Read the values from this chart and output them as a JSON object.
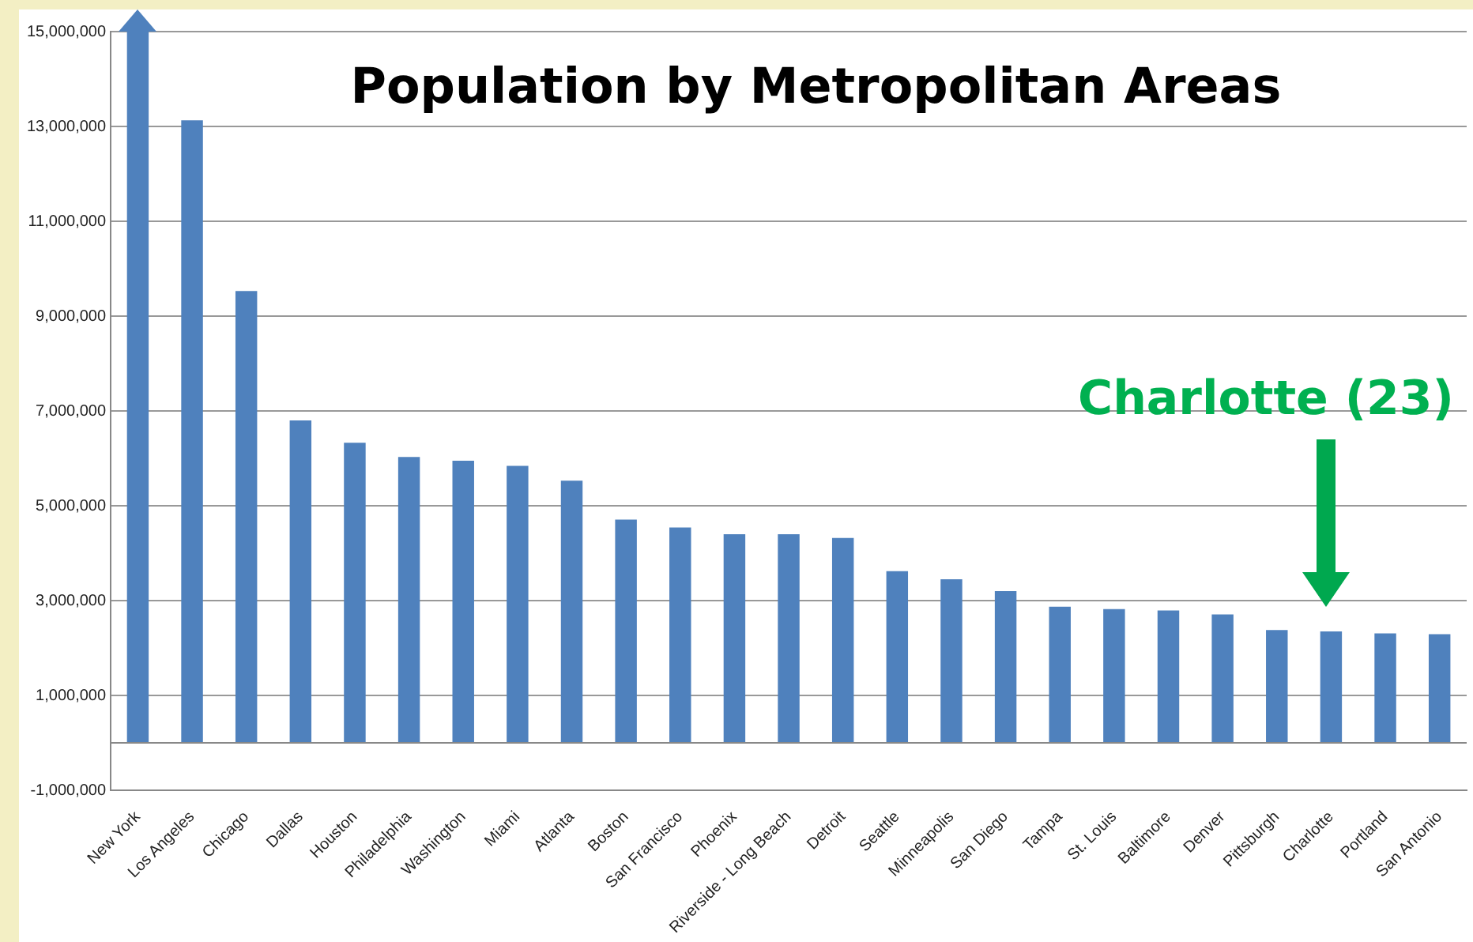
{
  "chart_data": {
    "type": "bar",
    "title": "Population by Metropolitan Areas",
    "categories": [
      "New York",
      "Los Angeles",
      "Chicago",
      "Dallas",
      "Houston",
      "Philadelphia",
      "Washington",
      "Miami",
      "Atlanta",
      "Boston",
      "San Francisco",
      "Phoenix",
      "Riverside - Long Beach",
      "Detroit",
      "Seattle",
      "Minneapolis",
      "San Diego",
      "Tampa",
      "St. Louis",
      "Baltimore",
      "Denver",
      "Pittsburgh",
      "Charlotte",
      "Portland",
      "San Antonio"
    ],
    "values": [
      15000000,
      13130000,
      9530000,
      6800000,
      6330000,
      6030000,
      5950000,
      5840000,
      5530000,
      4710000,
      4540000,
      4400000,
      4400000,
      4320000,
      3620000,
      3450000,
      3200000,
      2870000,
      2820000,
      2790000,
      2710000,
      2380000,
      2350000,
      2310000,
      2290000
    ],
    "color": "#4f81bd",
    "ylim": [
      -1000000,
      15000000
    ],
    "yticks": [
      {
        "value": -1000000,
        "label": "-1,000,000"
      },
      {
        "value": 1000000,
        "label": "1,000,000"
      },
      {
        "value": 3000000,
        "label": "3,000,000"
      },
      {
        "value": 5000000,
        "label": "5,000,000"
      },
      {
        "value": 7000000,
        "label": "7,000,000"
      },
      {
        "value": 9000000,
        "label": "9,000,000"
      },
      {
        "value": 11000000,
        "label": "11,000,000"
      },
      {
        "value": 13000000,
        "label": "13,000,000"
      },
      {
        "value": 15000000,
        "label": "15,000,000"
      }
    ],
    "grid": "y",
    "annotations": [
      "Charlotte (23)"
    ]
  }
}
